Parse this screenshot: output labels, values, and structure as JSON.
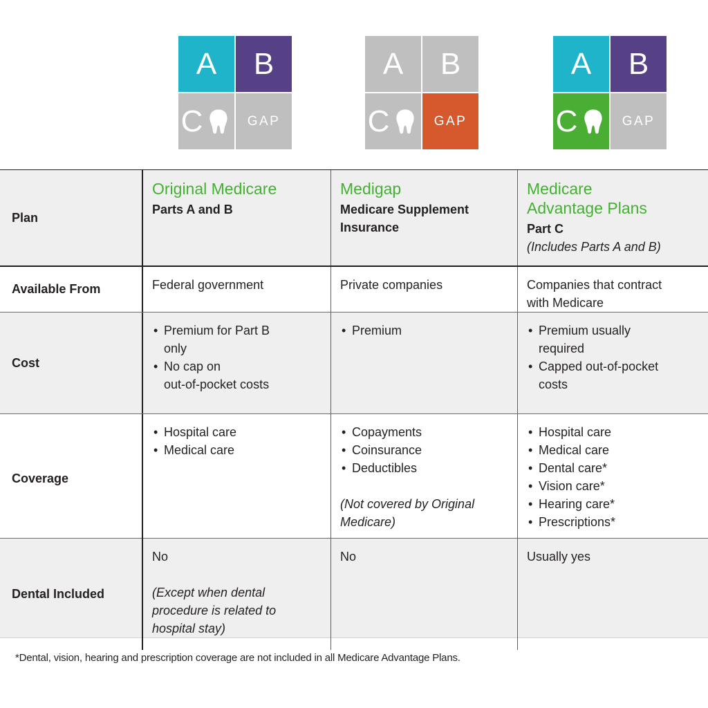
{
  "colors": {
    "teal": "#1FB4C9",
    "purple": "#564187",
    "gray": "#BFBFBF",
    "orange": "#D6582D",
    "green": "#4AAE35",
    "accent_green_text": "#44B032",
    "row_shade": "#F0EFEF",
    "text_dark": "#231F20"
  },
  "legend": {
    "groups": [
      {
        "id": "original-medicare",
        "tiles": [
          {
            "label": "A",
            "color": "teal"
          },
          {
            "label": "B",
            "color": "purple"
          },
          {
            "label": "C",
            "color": "gray",
            "tooth": true
          },
          {
            "label": "GAP",
            "color": "gray"
          }
        ]
      },
      {
        "id": "medigap",
        "tiles": [
          {
            "label": "A",
            "color": "gray"
          },
          {
            "label": "B",
            "color": "gray"
          },
          {
            "label": "C",
            "color": "gray",
            "tooth": true
          },
          {
            "label": "GAP",
            "color": "orange"
          }
        ]
      },
      {
        "id": "medicare-advantage",
        "tiles": [
          {
            "label": "A",
            "color": "teal"
          },
          {
            "label": "B",
            "color": "purple"
          },
          {
            "label": "C",
            "color": "green",
            "tooth": true
          },
          {
            "label": "GAP",
            "color": "gray"
          }
        ]
      }
    ]
  },
  "table": {
    "header_row_label": "Plan",
    "columns": [
      {
        "title": "Original Medicare",
        "subtitle": "Parts A and B",
        "note": ""
      },
      {
        "title": "Medigap",
        "subtitle": "Medicare Supplement\nInsurance",
        "note": ""
      },
      {
        "title": "Medicare\nAdvantage Plans",
        "subtitle": "Part C",
        "note": "(Includes Parts A and B)"
      }
    ],
    "rows": [
      {
        "label": "Available From",
        "cells": [
          {
            "text": "Federal government"
          },
          {
            "text": "Private companies"
          },
          {
            "text": "Companies that contract\nwith Medicare"
          }
        ]
      },
      {
        "label": "Cost",
        "cells": [
          {
            "bullets": [
              "Premium for Part B\nonly",
              "No cap on\nout-of-pocket costs"
            ]
          },
          {
            "bullets": [
              "Premium"
            ]
          },
          {
            "bullets": [
              "Premium usually\nrequired",
              "Capped out-of-pocket\ncosts"
            ]
          }
        ]
      },
      {
        "label": "Coverage",
        "cells": [
          {
            "bullets": [
              "Hospital care",
              "Medical care"
            ]
          },
          {
            "bullets": [
              "Copayments",
              "Coinsurance",
              "Deductibles"
            ],
            "note": "(Not covered by Original\nMedicare)"
          },
          {
            "bullets": [
              "Hospital care",
              "Medical care",
              "Dental care*",
              "Vision care*",
              "Hearing care*",
              "Prescriptions*"
            ]
          }
        ]
      },
      {
        "label": "Dental Included",
        "cells": [
          {
            "text": "No",
            "note": "(Except when dental\nprocedure is related to\nhospital stay)"
          },
          {
            "text": "No"
          },
          {
            "text": "Usually yes"
          }
        ]
      }
    ]
  },
  "footnote": "*Dental, vision, hearing and prescription coverage are not included in all Medicare Advantage Plans."
}
